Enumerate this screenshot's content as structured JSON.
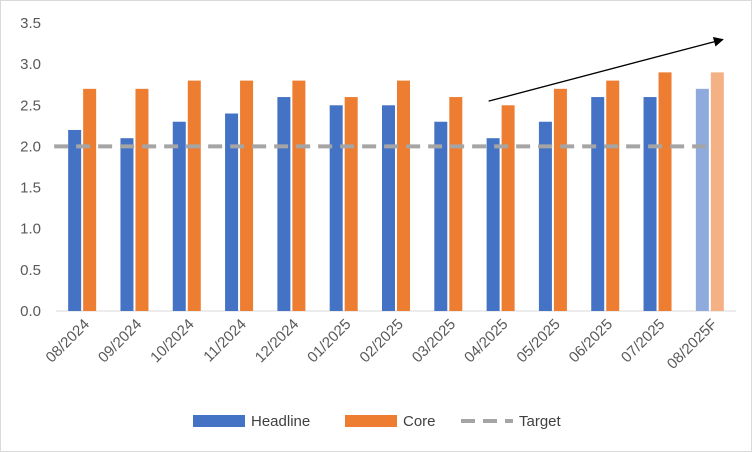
{
  "chart_data": {
    "type": "bar",
    "title": "",
    "xlabel": "",
    "ylabel": "",
    "ylim": [
      0,
      3.5
    ],
    "yticks": [
      "0.0",
      "0.5",
      "1.0",
      "1.5",
      "2.0",
      "2.5",
      "3.0",
      "3.5"
    ],
    "grid": false,
    "legend_position": "bottom",
    "categories": [
      "08/2024",
      "09/2024",
      "10/2024",
      "11/2024",
      "12/2024",
      "01/2025",
      "02/2025",
      "03/2025",
      "04/2025",
      "05/2025",
      "06/2025",
      "07/2025",
      "08/2025F"
    ],
    "series": [
      {
        "name": "Headline",
        "type": "bar",
        "color": "#4472c4",
        "forecast_color": "#8faadc",
        "values": [
          2.2,
          2.1,
          2.3,
          2.4,
          2.6,
          2.5,
          2.5,
          2.3,
          2.1,
          2.3,
          2.6,
          2.6,
          2.7
        ]
      },
      {
        "name": "Core",
        "type": "bar",
        "color": "#ed7d31",
        "forecast_color": "#f4b183",
        "values": [
          2.7,
          2.7,
          2.8,
          2.8,
          2.8,
          2.6,
          2.8,
          2.6,
          2.5,
          2.7,
          2.8,
          2.9,
          2.9
        ]
      },
      {
        "name": "Target",
        "type": "dashed-line",
        "color": "#a5a5a5",
        "values": [
          2.0,
          2.0,
          2.0,
          2.0,
          2.0,
          2.0,
          2.0,
          2.0,
          2.0,
          2.0,
          2.0,
          2.0,
          2.0
        ]
      }
    ],
    "forecast_categories": [
      "08/2025F"
    ],
    "annotations": [
      {
        "type": "arrow",
        "color": "#000000",
        "from": {
          "x": "04/2025",
          "y": 2.55
        },
        "to": {
          "x": "08/2025F",
          "y": 3.3
        }
      }
    ]
  }
}
